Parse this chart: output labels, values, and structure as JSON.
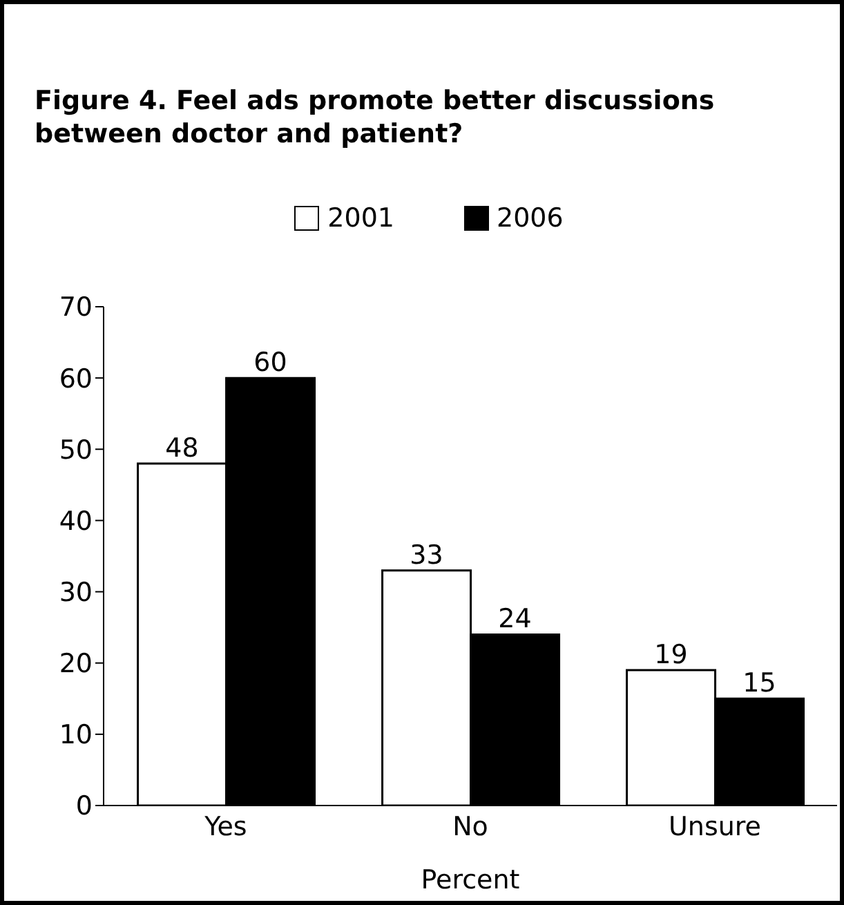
{
  "chart_data": {
    "type": "bar",
    "title": "Figure 4. Feel ads promote better discussions between doctor and patient?",
    "xlabel": "Percent",
    "categories": [
      "Yes",
      "No",
      "Unsure"
    ],
    "series": [
      {
        "name": "2001",
        "color": "#ffffff",
        "values": [
          48,
          33,
          19
        ]
      },
      {
        "name": "2006",
        "color": "#000000",
        "values": [
          60,
          24,
          15
        ]
      }
    ],
    "ylim": [
      0,
      70
    ],
    "yticks": [
      0,
      10,
      20,
      30,
      40,
      50,
      60,
      70
    ],
    "data_labels": true,
    "legend": "top",
    "grid": false
  }
}
